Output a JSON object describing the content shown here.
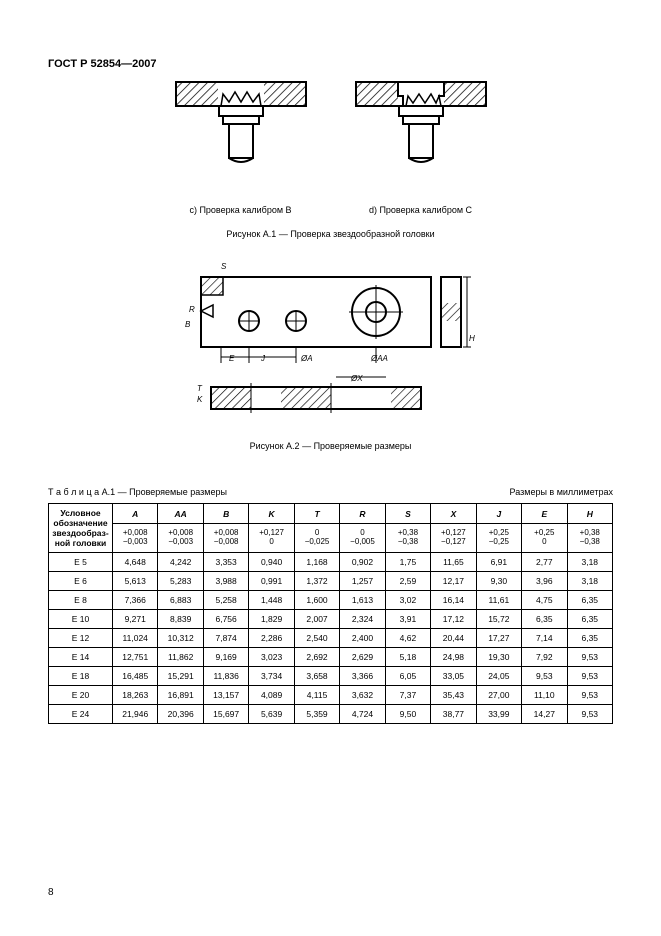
{
  "header": "ГОСТ Р 52854—2007",
  "fig_c_caption": "c)  Проверка калибром B",
  "fig_d_caption": "d) Проверка калибром C",
  "fig1_caption": "Рисунок А.1 — Проверка звездообразной головки",
  "fig2_caption": "Рисунок А.2 — Проверяемые размеры",
  "table_label": "Т а б л и ц а   А.1 — Проверяемые размеры",
  "units": "Размеры в миллиметрах",
  "row_header": "Условное обозначение звездообраз-ной головки",
  "cols": [
    "A",
    "AA",
    "B",
    "K",
    "T",
    "R",
    "S",
    "X",
    "J",
    "E",
    "H"
  ],
  "tol": [
    {
      "u": "+0,008",
      "l": "−0,003"
    },
    {
      "u": "+0,008",
      "l": "−0,003"
    },
    {
      "u": "+0,008",
      "l": "−0,008"
    },
    {
      "u": "+0,127",
      "l": "0"
    },
    {
      "u": "0",
      "l": "−0,025"
    },
    {
      "u": "0",
      "l": "−0,005"
    },
    {
      "u": "+0,38",
      "l": "−0,38"
    },
    {
      "u": "+0,127",
      "l": "−0,127"
    },
    {
      "u": "+0,25",
      "l": "−0,25"
    },
    {
      "u": "+0,25",
      "l": "0"
    },
    {
      "u": "+0,38",
      "l": "−0,38"
    }
  ],
  "rows": [
    {
      "k": "E 5",
      "v": [
        "4,648",
        "4,242",
        "3,353",
        "0,940",
        "1,168",
        "0,902",
        "1,75",
        "11,65",
        "6,91",
        "2,77",
        "3,18"
      ]
    },
    {
      "k": "E 6",
      "v": [
        "5,613",
        "5,283",
        "3,988",
        "0,991",
        "1,372",
        "1,257",
        "2,59",
        "12,17",
        "9,30",
        "3,96",
        "3,18"
      ]
    },
    {
      "k": "E 8",
      "v": [
        "7,366",
        "6,883",
        "5,258",
        "1,448",
        "1,600",
        "1,613",
        "3,02",
        "16,14",
        "11,61",
        "4,75",
        "6,35"
      ]
    },
    {
      "k": "E 10",
      "v": [
        "9,271",
        "8,839",
        "6,756",
        "1,829",
        "2,007",
        "2,324",
        "3,91",
        "17,12",
        "15,72",
        "6,35",
        "6,35"
      ]
    },
    {
      "k": "E 12",
      "v": [
        "11,024",
        "10,312",
        "7,874",
        "2,286",
        "2,540",
        "2,400",
        "4,62",
        "20,44",
        "17,27",
        "7,14",
        "6,35"
      ]
    },
    {
      "k": "E 14",
      "v": [
        "12,751",
        "11,862",
        "9,169",
        "3,023",
        "2,692",
        "2,629",
        "5,18",
        "24,98",
        "19,30",
        "7,92",
        "9,53"
      ]
    },
    {
      "k": "E 18",
      "v": [
        "16,485",
        "15,291",
        "11,836",
        "3,734",
        "3,658",
        "3,366",
        "6,05",
        "33,05",
        "24,05",
        "9,53",
        "9,53"
      ]
    },
    {
      "k": "E 20",
      "v": [
        "18,263",
        "16,891",
        "13,157",
        "4,089",
        "4,115",
        "3,632",
        "7,37",
        "35,43",
        "27,00",
        "11,10",
        "9,53"
      ]
    },
    {
      "k": "E 24",
      "v": [
        "21,946",
        "20,396",
        "15,697",
        "5,639",
        "5,359",
        "4,724",
        "9,50",
        "38,77",
        "33,99",
        "14,27",
        "9,53"
      ]
    }
  ],
  "page_number": "8",
  "dim_labels": {
    "s": "S",
    "r": "R",
    "b": "B",
    "e": "E",
    "j": "J",
    "oa": "ØA",
    "oaa": "ØAA",
    "ox": "ØX",
    "k": "K",
    "h": "H",
    "t": "T"
  }
}
